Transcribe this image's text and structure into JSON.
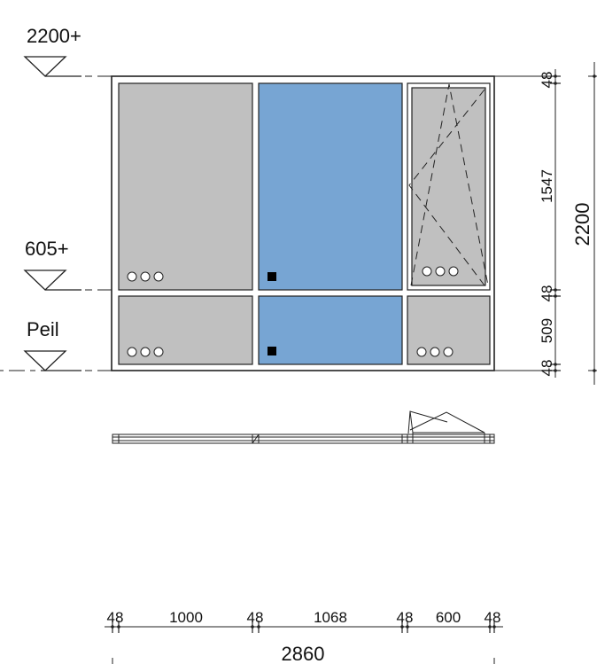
{
  "levels": {
    "top": "2200+",
    "sill": "605+",
    "floor": "Peil"
  },
  "dimensions": {
    "vertical": {
      "top_frame": "48",
      "upper_glass": "1547",
      "transom": "48",
      "lower_glass": "509",
      "bottom_frame": "48",
      "total": "2200"
    },
    "horizontal": {
      "left_frame": "48",
      "panel_1": "1000",
      "mullion_1": "48",
      "panel_2": "1068",
      "mullion_2": "48",
      "panel_3": "600",
      "right_frame": "48",
      "total": "2860"
    }
  },
  "colors": {
    "fixed_glass": "#c0c0c0",
    "blue_glass": "#77a5d3",
    "frame_line": "#222222",
    "marker_square": "#000000"
  }
}
